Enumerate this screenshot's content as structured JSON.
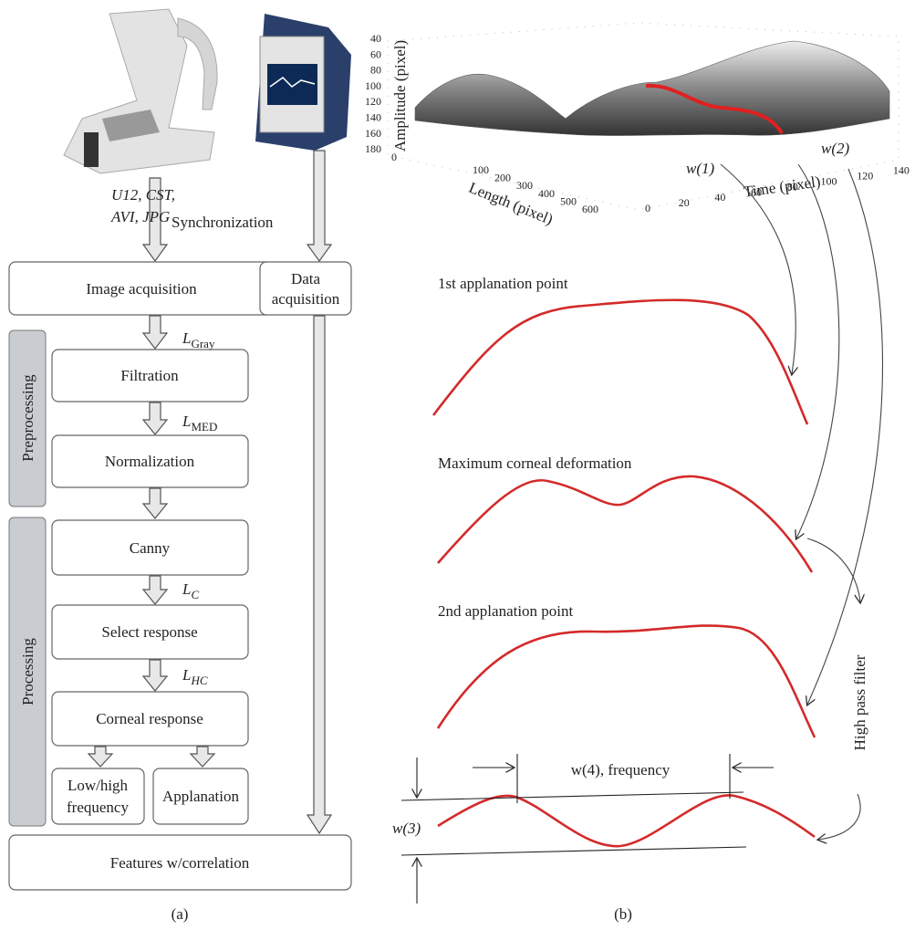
{
  "panel_a": {
    "caption": "(a)",
    "formats": [
      "U12, CST,",
      "AVI, JPG"
    ],
    "synchronization": "Synchronization",
    "groups": [
      "Preprocessing",
      "Processing"
    ],
    "nodes": [
      {
        "lines": [
          "Image acquisition"
        ]
      },
      {
        "lines": [
          "Data",
          "acquisition"
        ]
      },
      {
        "lines": [
          "Filtration"
        ]
      },
      {
        "lines": [
          "Normalization"
        ]
      },
      {
        "lines": [
          "Canny"
        ]
      },
      {
        "lines": [
          "Select response"
        ]
      },
      {
        "lines": [
          "Corneal response"
        ]
      },
      {
        "lines": [
          "Low/high",
          "frequency"
        ]
      },
      {
        "lines": [
          "Applanation"
        ]
      },
      {
        "lines": [
          "Features w/correlation"
        ]
      }
    ],
    "edge_labels": [
      {
        "symbol": "L",
        "sub": "Gray"
      },
      {
        "symbol": "L",
        "sub": "MED"
      },
      {
        "symbol": "L",
        "sub": "C"
      },
      {
        "symbol": "L",
        "sub": "HC"
      }
    ]
  },
  "panel_b": {
    "caption": "(b)",
    "plot": {
      "amplitude_label": "Amplitude (pixel)",
      "amplitude_ticks": [
        "40",
        "60",
        "80",
        "100",
        "120",
        "140",
        "160",
        "180"
      ],
      "length_label": "Length (pixel)",
      "length_ticks": [
        "0",
        "100",
        "200",
        "300",
        "400",
        "500",
        "600"
      ],
      "time_label": "Time (pixel)",
      "time_ticks": [
        "0",
        "20",
        "40",
        "60",
        "80",
        "100",
        "120",
        "140"
      ]
    },
    "markers": [
      "w(1)",
      "w(2)"
    ],
    "curves": [
      "1st applanation point",
      "Maximum corneal deformation",
      "2nd applanation point"
    ],
    "filter": "High pass filter",
    "frequency": "w(4), frequency",
    "amplitude": "w(3)"
  }
}
